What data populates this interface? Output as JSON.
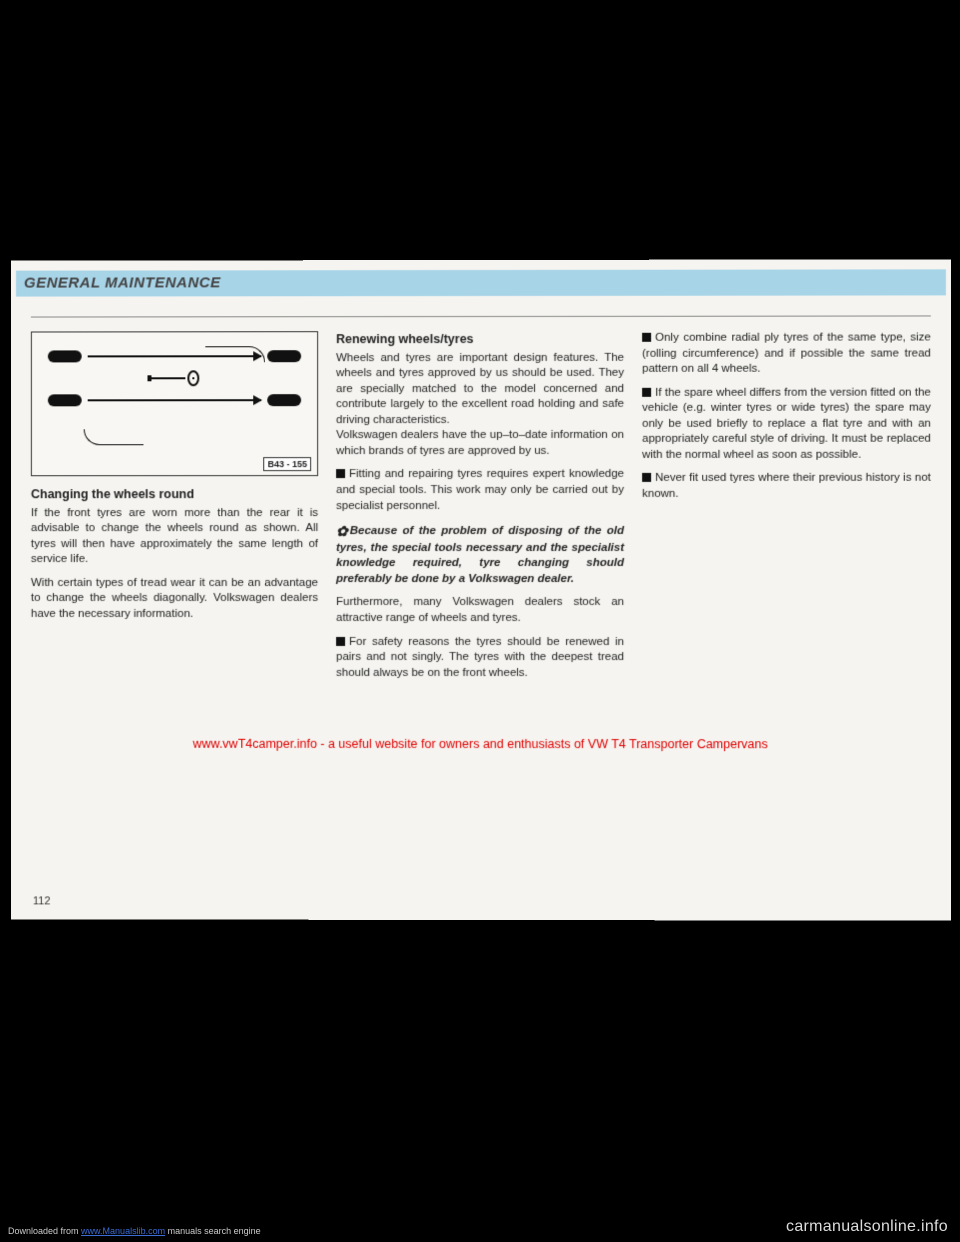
{
  "header": {
    "title": "GENERAL MAINTENANCE"
  },
  "diagram": {
    "label": "B43 - 155"
  },
  "col1": {
    "subhead": "Changing the wheels round",
    "p1": "If the front tyres are worn more than the rear it is advisable to change the wheels round as shown. All tyres will then have approximately the same length of service life.",
    "p2": "With certain types of tread wear it can be an advantage to change the wheels diagonally. Volkswagen dealers have the necessary information."
  },
  "col2": {
    "subhead": "Renewing wheels/tyres",
    "p1": "Wheels and tyres are important design features. The wheels and tyres approved by us should be used. They are specially matched to the model concerned and contribute largely to the excellent road holding and safe driving characteristics.",
    "p1b": "Volkswagen dealers have the up–to–date information on which brands of tyres are approved by us.",
    "b1": "Fitting and repairing tyres requires expert knowledge and special tools. This work may only be carried out by specialist personnel.",
    "note": "Because of the problem of disposing of the old tyres, the special tools necessary and the specialist knowledge required, tyre changing should preferably be done by a Volkswagen dealer.",
    "p2": "Furthermore, many Volkswagen dealers stock an attractive range of wheels and tyres.",
    "b2": "For safety reasons the tyres should be renewed in pairs and not singly. The tyres with the deepest tread should always be on the front wheels."
  },
  "col3": {
    "b1": "Only combine radial ply tyres of the same type, size (rolling circumference) and if possible the same tread pattern on all 4 wheels.",
    "b2": "If the spare wheel differs from the version fitted on the vehicle (e.g. winter tyres or wide tyres) the spare may only be used briefly to replace a flat tyre and with an appropriately careful style of driving. It must be replaced with the normal wheel as soon as possible.",
    "b3": "Never fit used tyres where their previous history is not known."
  },
  "watermark": "www.vwT4camper.info - a useful website for owners and enthusiasts of VW T4 Transporter Campervans",
  "page_number": "112",
  "footer": {
    "dl_pre": "Downloaded from ",
    "dl_link": "www.Manualslib.com",
    "dl_post": " manuals search engine",
    "site": "carmanualsonline.info"
  },
  "colors": {
    "header_band": "#a8d4e8",
    "page_bg": "#f5f4f0",
    "watermark": "#e00000",
    "text": "#222222"
  }
}
